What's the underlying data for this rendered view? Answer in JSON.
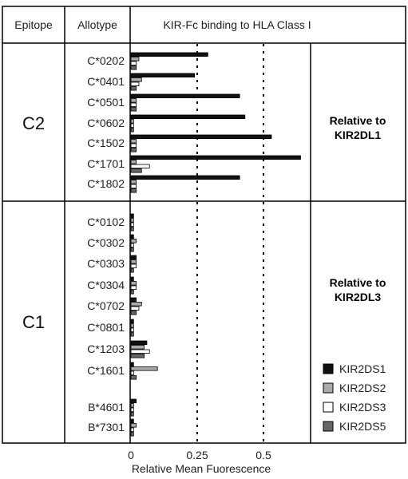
{
  "header": {
    "epitope": "Epitope",
    "allotype": "Allotype",
    "binding": "KIR-Fc binding to HLA Class I"
  },
  "groups": {
    "c2": {
      "epitope": "C2",
      "relative_line1": "Relative to",
      "relative_line2": "KIR2DL1"
    },
    "c1": {
      "epitope": "C1",
      "relative_line1": "Relative to",
      "relative_line2": "KIR2DL3"
    }
  },
  "chart_data": {
    "type": "bar",
    "orientation": "horizontal",
    "xlabel": "Relative Mean Fuorescence",
    "xticks": [
      "0",
      "0.25",
      "0.5"
    ],
    "xlim": [
      0,
      0.66
    ],
    "reference_lines": [
      0.25,
      0.5
    ],
    "categories": [
      "C*0202",
      "C*0401",
      "C*0501",
      "C*0602",
      "C*1502",
      "C*1701",
      "C*1802",
      "C*0102",
      "C*0302",
      "C*0303",
      "C*0304",
      "C*0702",
      "C*0801",
      "C*1203",
      "C*1601",
      "B*4601",
      "B*7301"
    ],
    "series": [
      {
        "name": "KIR2DS1",
        "color": "#111111",
        "values": [
          0.29,
          0.24,
          0.41,
          0.43,
          0.53,
          0.64,
          0.41,
          0.01,
          0.01,
          0.02,
          0.01,
          0.02,
          0.01,
          0.06,
          0.01,
          0.02,
          0.01
        ]
      },
      {
        "name": "KIR2DS2",
        "color": "#aaaaaa",
        "values": [
          0.03,
          0.04,
          0.02,
          0.01,
          0.02,
          0.02,
          0.02,
          0.01,
          0.02,
          0.02,
          0.02,
          0.04,
          0.01,
          0.05,
          0.1,
          0.01,
          0.02
        ]
      },
      {
        "name": "KIR2DS3",
        "color": "#ffffff",
        "values": [
          0.02,
          0.03,
          0.02,
          0.01,
          0.02,
          0.07,
          0.02,
          0.01,
          0.01,
          0.02,
          0.02,
          0.03,
          0.01,
          0.07,
          0.01,
          0.01,
          0.01
        ]
      },
      {
        "name": "KIR2DS5",
        "color": "#666666",
        "values": [
          0.02,
          0.02,
          0.02,
          0.01,
          0.02,
          0.04,
          0.02,
          0.01,
          0.01,
          0.01,
          0.01,
          0.02,
          0.01,
          0.05,
          0.02,
          0.01,
          0.01
        ]
      }
    ],
    "legend_position": "bottom-right"
  }
}
